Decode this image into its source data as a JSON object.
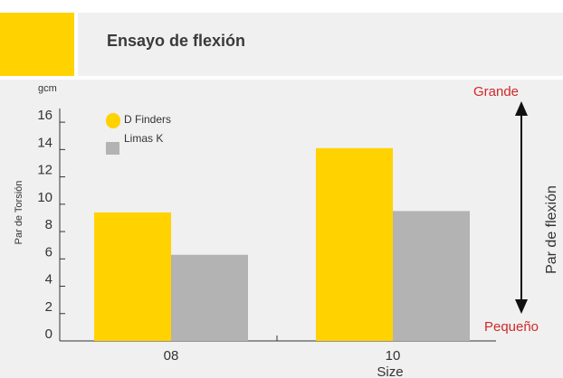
{
  "header": {
    "title": "Ensayo de flexión"
  },
  "colors": {
    "accent": "#ffd200",
    "series_gray": "#b3b3b3",
    "scale_red": "#d0282a",
    "axis": "#333333"
  },
  "chart_data": {
    "type": "bar",
    "title": "",
    "unit_label": "gcm",
    "ylabel": "Par de Torsión",
    "xlabel": "Size",
    "categories": [
      "08",
      "10"
    ],
    "ylim": [
      0,
      17
    ],
    "yticks": [
      "0",
      "2",
      "4",
      "6",
      "8",
      "10",
      "12",
      "14",
      "16"
    ],
    "series": [
      {
        "name": "D Finders",
        "values": [
          9.4,
          14.1
        ],
        "color": "#ffd200"
      },
      {
        "name": "Limas K",
        "values": [
          6.3,
          9.5
        ],
        "color": "#b3b3b3"
      }
    ],
    "legend_position": "top-left",
    "grid": false,
    "scale_arrow": {
      "top_label": "Grande",
      "bottom_label": "Pequeño",
      "side_label": "Par de flexión"
    }
  }
}
